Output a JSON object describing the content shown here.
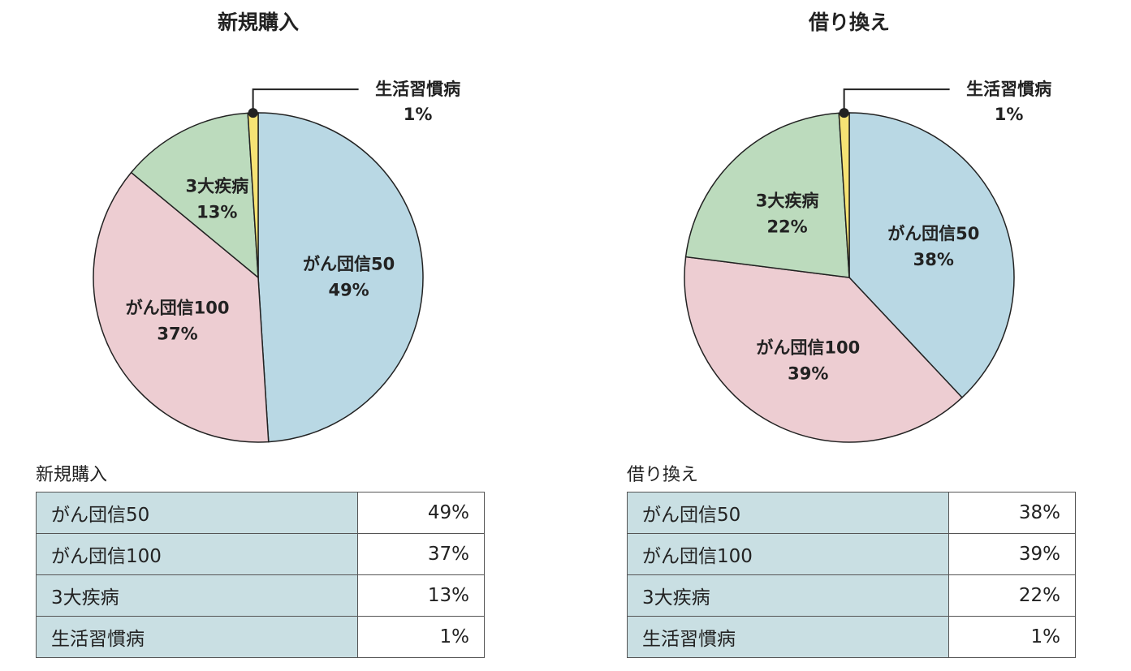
{
  "chart_data": [
    {
      "type": "pie",
      "title": "新規購入",
      "slices": [
        {
          "label": "がん団信50",
          "value": 49,
          "display": "49%",
          "color": "#b9d8e4"
        },
        {
          "label": "がん団信100",
          "value": 37,
          "display": "37%",
          "color": "#edcdd2"
        },
        {
          "label": "3大疾病",
          "value": 13,
          "display": "13%",
          "color": "#bcdbbd"
        },
        {
          "label": "生活習慣病",
          "value": 1,
          "display": "1%",
          "color": "#f6e374"
        }
      ]
    },
    {
      "type": "pie",
      "title": "借り換え",
      "slices": [
        {
          "label": "がん団信50",
          "value": 38,
          "display": "38%",
          "color": "#b9d8e4"
        },
        {
          "label": "がん団信100",
          "value": 39,
          "display": "39%",
          "color": "#edcdd2"
        },
        {
          "label": "3大疾病",
          "value": 22,
          "display": "22%",
          "color": "#bcdbbd"
        },
        {
          "label": "生活習慣病",
          "value": 1,
          "display": "1%",
          "color": "#f6e374"
        }
      ]
    }
  ]
}
